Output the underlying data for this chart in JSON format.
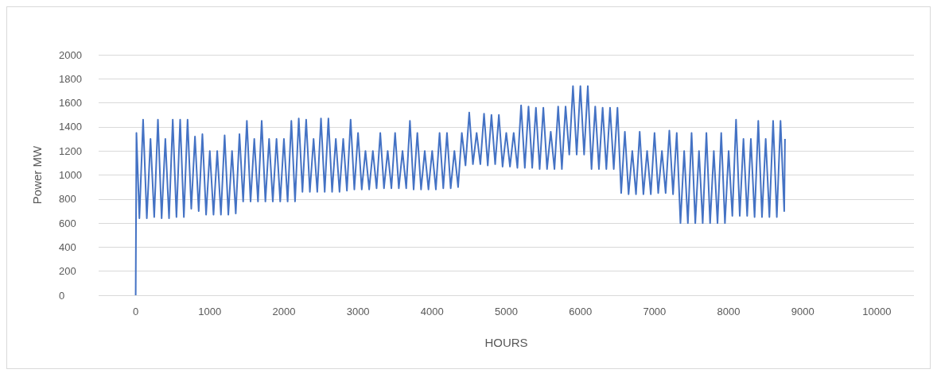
{
  "chart_data": {
    "type": "line",
    "xlabel": "HOURS",
    "ylabel": "Power MW",
    "x": [
      0,
      10,
      50,
      100,
      150,
      200,
      250,
      300,
      350,
      400,
      450,
      500,
      550,
      600,
      650,
      700,
      750,
      800,
      850,
      900,
      950,
      1000,
      1050,
      1100,
      1150,
      1200,
      1250,
      1300,
      1350,
      1400,
      1450,
      1500,
      1550,
      1600,
      1650,
      1700,
      1750,
      1800,
      1850,
      1900,
      1950,
      2000,
      2050,
      2100,
      2150,
      2200,
      2250,
      2300,
      2350,
      2400,
      2450,
      2500,
      2550,
      2600,
      2650,
      2700,
      2750,
      2800,
      2850,
      2900,
      2950,
      3000,
      3050,
      3100,
      3150,
      3200,
      3250,
      3300,
      3350,
      3400,
      3450,
      3500,
      3550,
      3600,
      3650,
      3700,
      3750,
      3800,
      3850,
      3900,
      3950,
      4000,
      4050,
      4100,
      4150,
      4200,
      4250,
      4300,
      4350,
      4400,
      4450,
      4500,
      4550,
      4600,
      4650,
      4700,
      4750,
      4800,
      4850,
      4900,
      4950,
      5000,
      5050,
      5100,
      5150,
      5200,
      5250,
      5300,
      5350,
      5400,
      5450,
      5500,
      5550,
      5600,
      5650,
      5700,
      5750,
      5800,
      5850,
      5900,
      5950,
      6000,
      6050,
      6100,
      6150,
      6200,
      6250,
      6300,
      6350,
      6400,
      6450,
      6500,
      6550,
      6600,
      6650,
      6700,
      6750,
      6800,
      6850,
      6900,
      6950,
      7000,
      7050,
      7100,
      7150,
      7200,
      7250,
      7300,
      7350,
      7400,
      7450,
      7500,
      7550,
      7600,
      7650,
      7700,
      7750,
      7800,
      7850,
      7900,
      7950,
      8000,
      8050,
      8100,
      8150,
      8200,
      8250,
      8300,
      8350,
      8400,
      8450,
      8500,
      8550,
      8600,
      8650,
      8700,
      8750,
      8760
    ],
    "series": [
      {
        "color": "#4472c4",
        "values": [
          0,
          1350,
          640,
          1460,
          640,
          1300,
          650,
          1460,
          640,
          1300,
          640,
          1460,
          650,
          1460,
          650,
          1460,
          720,
          1320,
          700,
          1340,
          670,
          1200,
          670,
          1200,
          670,
          1330,
          670,
          1200,
          680,
          1340,
          780,
          1450,
          780,
          1300,
          780,
          1450,
          780,
          1300,
          780,
          1300,
          780,
          1300,
          780,
          1450,
          780,
          1470,
          860,
          1460,
          860,
          1300,
          860,
          1470,
          860,
          1470,
          860,
          1300,
          860,
          1300,
          870,
          1460,
          880,
          1350,
          880,
          1200,
          880,
          1200,
          890,
          1350,
          890,
          1200,
          890,
          1350,
          890,
          1200,
          890,
          1450,
          880,
          1350,
          880,
          1200,
          880,
          1200,
          880,
          1350,
          890,
          1350,
          890,
          1200,
          900,
          1350,
          1080,
          1520,
          1090,
          1350,
          1090,
          1510,
          1080,
          1500,
          1090,
          1500,
          1070,
          1350,
          1070,
          1350,
          1060,
          1580,
          1060,
          1570,
          1060,
          1560,
          1050,
          1560,
          1050,
          1360,
          1050,
          1570,
          1050,
          1570,
          1170,
          1740,
          1170,
          1740,
          1170,
          1740,
          1050,
          1570,
          1050,
          1560,
          1050,
          1560,
          1050,
          1560,
          850,
          1360,
          840,
          1200,
          840,
          1360,
          840,
          1200,
          840,
          1350,
          850,
          1200,
          850,
          1370,
          840,
          1350,
          600,
          1200,
          600,
          1350,
          600,
          1200,
          600,
          1350,
          600,
          1200,
          600,
          1350,
          600,
          1200,
          660,
          1460,
          660,
          1300,
          660,
          1300,
          650,
          1450,
          650,
          1300,
          650,
          1450,
          650,
          1450,
          700,
          1300
        ]
      }
    ],
    "xlim": [
      -500,
      10500
    ],
    "xticks": [
      0,
      1000,
      2000,
      3000,
      4000,
      5000,
      6000,
      7000,
      8000,
      9000,
      10000
    ],
    "ylim": [
      0,
      2000
    ],
    "yticks": [
      0,
      200,
      400,
      600,
      800,
      1000,
      1200,
      1400,
      1600,
      1800,
      2000
    ],
    "grid": "y",
    "marker": "none",
    "line_style": "solid"
  }
}
